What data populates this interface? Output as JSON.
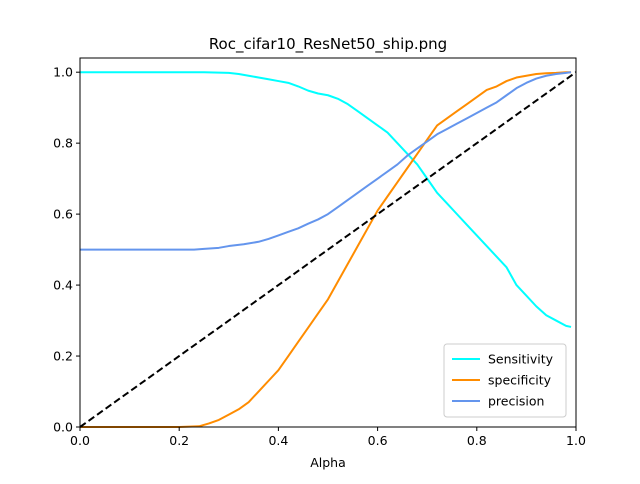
{
  "chart_data": {
    "type": "line",
    "title": "Roc_cifar10_ResNet50_ship.png",
    "xlabel": "Alpha",
    "ylabel": "",
    "xlim": [
      0,
      1
    ],
    "ylim": [
      0,
      1.04
    ],
    "xticks": [
      0.0,
      0.2,
      0.4,
      0.6,
      0.8,
      1.0
    ],
    "xtick_labels": [
      "0.0",
      "0.2",
      "0.4",
      "0.6",
      "0.8",
      "1.0"
    ],
    "yticks": [
      0.0,
      0.2,
      0.4,
      0.6,
      0.8,
      1.0
    ],
    "ytick_labels": [
      "0.0",
      "0.2",
      "0.4",
      "0.6",
      "0.8",
      "1.0"
    ],
    "grid": false,
    "legend_position": "lower-right",
    "series": [
      {
        "name": "Sensitivity",
        "color": "#00ffff",
        "style": "solid",
        "x": [
          0.0,
          0.1,
          0.2,
          0.25,
          0.3,
          0.32,
          0.34,
          0.36,
          0.38,
          0.4,
          0.42,
          0.44,
          0.46,
          0.48,
          0.5,
          0.52,
          0.54,
          0.56,
          0.58,
          0.6,
          0.62,
          0.64,
          0.66,
          0.68,
          0.7,
          0.72,
          0.74,
          0.76,
          0.78,
          0.8,
          0.82,
          0.84,
          0.86,
          0.88,
          0.9,
          0.92,
          0.94,
          0.96,
          0.98,
          0.99
        ],
        "y": [
          1.0,
          1.0,
          1.0,
          1.0,
          0.998,
          0.995,
          0.99,
          0.985,
          0.98,
          0.975,
          0.97,
          0.96,
          0.948,
          0.94,
          0.935,
          0.925,
          0.91,
          0.89,
          0.87,
          0.85,
          0.83,
          0.8,
          0.77,
          0.74,
          0.7,
          0.66,
          0.63,
          0.6,
          0.57,
          0.54,
          0.51,
          0.48,
          0.45,
          0.4,
          0.37,
          0.34,
          0.315,
          0.3,
          0.285,
          0.282
        ]
      },
      {
        "name": "specificity",
        "color": "#ff8c00",
        "style": "solid",
        "x": [
          0.0,
          0.1,
          0.2,
          0.24,
          0.26,
          0.28,
          0.3,
          0.32,
          0.34,
          0.36,
          0.38,
          0.4,
          0.42,
          0.44,
          0.46,
          0.48,
          0.5,
          0.52,
          0.54,
          0.56,
          0.58,
          0.6,
          0.62,
          0.64,
          0.66,
          0.68,
          0.7,
          0.72,
          0.74,
          0.76,
          0.78,
          0.8,
          0.82,
          0.84,
          0.86,
          0.88,
          0.9,
          0.92,
          0.94,
          0.96,
          0.98,
          0.99
        ],
        "y": [
          0.0,
          0.0,
          0.0,
          0.002,
          0.01,
          0.02,
          0.035,
          0.05,
          0.07,
          0.1,
          0.13,
          0.16,
          0.2,
          0.24,
          0.28,
          0.32,
          0.36,
          0.41,
          0.46,
          0.51,
          0.56,
          0.61,
          0.65,
          0.69,
          0.73,
          0.77,
          0.81,
          0.85,
          0.87,
          0.89,
          0.91,
          0.93,
          0.95,
          0.96,
          0.975,
          0.985,
          0.99,
          0.995,
          0.997,
          0.998,
          1.0,
          1.0
        ]
      },
      {
        "name": "precision",
        "color": "#6495ed",
        "style": "solid",
        "x": [
          0.0,
          0.1,
          0.2,
          0.23,
          0.25,
          0.28,
          0.3,
          0.33,
          0.36,
          0.38,
          0.4,
          0.42,
          0.44,
          0.46,
          0.48,
          0.5,
          0.52,
          0.54,
          0.56,
          0.58,
          0.6,
          0.62,
          0.64,
          0.66,
          0.68,
          0.7,
          0.72,
          0.74,
          0.76,
          0.78,
          0.8,
          0.82,
          0.84,
          0.86,
          0.88,
          0.9,
          0.92,
          0.94,
          0.96,
          0.98,
          0.99
        ],
        "y": [
          0.5,
          0.5,
          0.5,
          0.5,
          0.502,
          0.505,
          0.51,
          0.515,
          0.522,
          0.53,
          0.54,
          0.55,
          0.56,
          0.573,
          0.585,
          0.6,
          0.62,
          0.64,
          0.66,
          0.68,
          0.7,
          0.72,
          0.74,
          0.765,
          0.785,
          0.805,
          0.825,
          0.84,
          0.855,
          0.87,
          0.885,
          0.9,
          0.915,
          0.935,
          0.955,
          0.97,
          0.982,
          0.99,
          0.995,
          0.998,
          1.0
        ]
      },
      {
        "name": "",
        "color": "#000000",
        "style": "dashed",
        "x": [
          0.0,
          1.0
        ],
        "y": [
          0.0,
          1.0
        ]
      }
    ]
  }
}
